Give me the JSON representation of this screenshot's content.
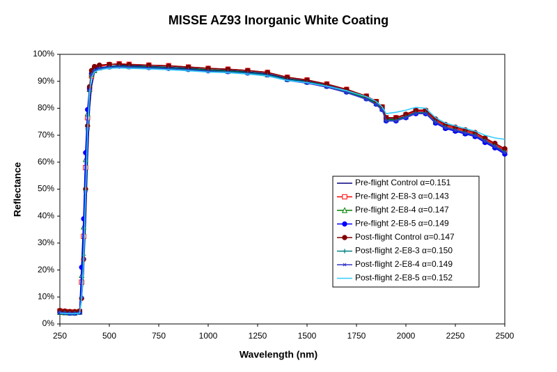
{
  "chart_data": {
    "type": "line",
    "title": "MISSE AZ93 Inorganic White Coating",
    "x_label": "Wavelength (nm)",
    "y_label": "Reflectance",
    "x": [
      250,
      275,
      300,
      325,
      350,
      360,
      370,
      380,
      390,
      400,
      410,
      425,
      450,
      500,
      550,
      600,
      700,
      800,
      900,
      1000,
      1100,
      1200,
      1300,
      1400,
      1500,
      1600,
      1700,
      1800,
      1850,
      1880,
      1900,
      1950,
      2000,
      2050,
      2100,
      2150,
      2200,
      2250,
      2300,
      2350,
      2400,
      2450,
      2500
    ],
    "xlim": [
      250,
      2500
    ],
    "xticks": [
      250,
      500,
      750,
      1000,
      1250,
      1500,
      1750,
      2000,
      2250,
      2500
    ],
    "ylim": [
      0,
      100
    ],
    "yticks": [
      {
        "value": 0,
        "label": "0%"
      },
      {
        "value": 10,
        "label": "10%"
      },
      {
        "value": 20,
        "label": "20%"
      },
      {
        "value": 30,
        "label": "30%"
      },
      {
        "value": 40,
        "label": "40%"
      },
      {
        "value": 50,
        "label": "50%"
      },
      {
        "value": 60,
        "label": "60%"
      },
      {
        "value": 70,
        "label": "70%"
      },
      {
        "value": 80,
        "label": "80%"
      },
      {
        "value": 90,
        "label": "90%"
      },
      {
        "value": 100,
        "label": "100%"
      }
    ],
    "series": [
      {
        "name": "Pre-flight Control α=0.151",
        "color": "#000080",
        "marker": "none",
        "values": [
          4.5,
          4.3,
          4.2,
          4.2,
          4.5,
          9,
          20,
          38,
          62,
          80,
          88,
          93.5,
          95,
          95.5,
          96,
          95.8,
          95.5,
          95.2,
          94.8,
          94.3,
          94,
          93.5,
          92.8,
          91,
          90,
          88.5,
          86.5,
          84,
          82,
          80,
          76,
          76,
          77,
          78.5,
          78.5,
          75,
          73,
          72,
          71,
          70,
          68,
          66,
          64
        ]
      },
      {
        "name": "Pre-flight 2-E8-3 α=0.143",
        "color": "#ff0000",
        "marker": "square",
        "values": [
          4.8,
          4.6,
          4.5,
          4.4,
          4.6,
          15.5,
          32.5,
          58,
          76.5,
          87,
          92,
          94.5,
          95.5,
          96.2,
          96.5,
          96.3,
          96,
          95.8,
          95.3,
          94.8,
          94.5,
          94,
          93.3,
          91.5,
          90.5,
          89,
          87,
          84.5,
          82.5,
          80.5,
          76.5,
          76.5,
          77.5,
          79,
          79,
          75.5,
          73.5,
          72.5,
          71.5,
          70.5,
          68.5,
          66.5,
          64.5
        ]
      },
      {
        "name": "Pre-flight 2-E8-4 α=0.147",
        "color": "#008000",
        "marker": "triangle",
        "values": [
          4.3,
          4.2,
          4.1,
          4.1,
          4.4,
          18,
          36,
          61,
          78,
          87,
          92.5,
          94,
          95,
          95.5,
          95.8,
          95.5,
          95.3,
          95,
          94.6,
          94.2,
          93.8,
          93.3,
          92.5,
          90.8,
          89.8,
          88.3,
          86.3,
          83.8,
          81.8,
          79.8,
          75.8,
          75.8,
          76.8,
          78.3,
          78.3,
          74.8,
          72.8,
          71.8,
          70.8,
          69.8,
          67.8,
          65.8,
          63.5
        ]
      },
      {
        "name": "Pre-flight 2-E8-5 α=0.149",
        "color": "#0000ff",
        "marker": "circle",
        "values": [
          4.4,
          4.2,
          4.0,
          4.0,
          4.3,
          21,
          39,
          63.5,
          79.5,
          87.5,
          93,
          94.3,
          95,
          95.4,
          95.6,
          95.4,
          95.1,
          94.8,
          94.4,
          93.9,
          93.6,
          93.1,
          92.4,
          90.6,
          89.6,
          88.1,
          86,
          83.5,
          81.5,
          79.5,
          75.3,
          75.3,
          76.5,
          78,
          78,
          74.5,
          72.5,
          71.5,
          70.5,
          69.5,
          67.3,
          65.3,
          63
        ]
      },
      {
        "name": "Post-flight Control α=0.147",
        "color": "#800000",
        "marker": "circle",
        "values": [
          5,
          4.8,
          4.6,
          4.6,
          4.8,
          9.5,
          24,
          50,
          73.5,
          88,
          94,
          95.5,
          96,
          96.3,
          96.4,
          96.2,
          96,
          95.7,
          95.3,
          94.8,
          94.5,
          94,
          93.3,
          91.5,
          90.5,
          89,
          87,
          84.5,
          82.5,
          80.5,
          76.5,
          76.5,
          77.8,
          79.3,
          79.3,
          76,
          74,
          73,
          72,
          71,
          69,
          67,
          65
        ]
      },
      {
        "name": "Post-flight 2-E8-3 α=0.150",
        "color": "#008080",
        "marker": "plus",
        "values": [
          4.2,
          4.1,
          4.0,
          4.0,
          4.2,
          10,
          25.5,
          49.5,
          72,
          86.5,
          92.5,
          94,
          94.8,
          95.2,
          95.5,
          95.3,
          95,
          94.7,
          94.3,
          93.8,
          93.6,
          93,
          92.3,
          90.5,
          89.5,
          88,
          86,
          83.5,
          81.5,
          79.5,
          75.5,
          75.5,
          76.8,
          78.3,
          78.3,
          75,
          73,
          72,
          71,
          70,
          68,
          66,
          63.8
        ]
      },
      {
        "name": "Post-flight 2-E8-4 α=0.149",
        "color": "#3333cc",
        "marker": "cross",
        "values": [
          4.3,
          4.1,
          4.0,
          4.0,
          4.2,
          9.8,
          24,
          49,
          72.5,
          86.5,
          92.3,
          93.8,
          94.6,
          95,
          95.3,
          95.1,
          94.8,
          94.5,
          94.1,
          93.6,
          93.3,
          92.8,
          92,
          90.3,
          89.3,
          87.8,
          85.8,
          83.3,
          81.3,
          79.3,
          75.3,
          75.3,
          76.5,
          78,
          78,
          74.8,
          72.8,
          71.8,
          70.8,
          69.8,
          67.8,
          65.8,
          63.5
        ]
      },
      {
        "name": "Post-flight 2-E8-5 α=0.152",
        "color": "#33ccff",
        "marker": "none",
        "values": [
          4.0,
          3.9,
          3.8,
          3.8,
          4.0,
          9.5,
          23,
          48,
          71,
          85.5,
          91.5,
          93.5,
          94.3,
          94.8,
          95,
          94.8,
          94.6,
          94.3,
          93.9,
          93.4,
          93.2,
          92.7,
          92,
          90.3,
          89.5,
          88.2,
          86.5,
          84.3,
          82.5,
          80.5,
          78,
          78.5,
          79.3,
          80.3,
          80,
          76.5,
          74.5,
          73.5,
          72.5,
          71.5,
          70,
          69,
          68.5
        ]
      }
    ]
  }
}
